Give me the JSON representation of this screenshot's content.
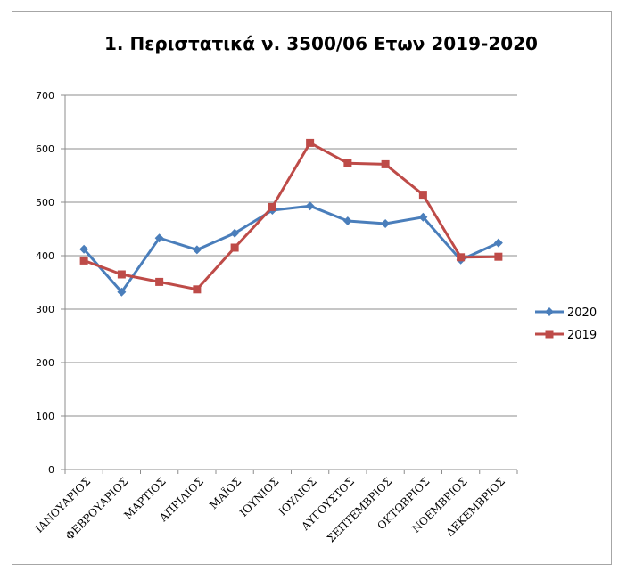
{
  "chart_data": {
    "type": "line",
    "title": "1. Περιστατικά ν. 3500/06 Ετων 2019-2020",
    "xlabel": "",
    "ylabel": "",
    "ylim": [
      0,
      700
    ],
    "yticks": [
      0,
      100,
      200,
      300,
      400,
      500,
      600,
      700
    ],
    "grid": true,
    "legend_position": "right",
    "categories": [
      "ΙΑΝΟΥΑΡΙΟΣ",
      "ΦΕΒΡΟΥΑΡΙΟΣ",
      "ΜΑΡΤΙΟΣ",
      "ΑΠΡΙΛΙΟΣ",
      "ΜΑΪΟΣ",
      "ΙΟΥΝΙΟΣ",
      "ΙΟΥΛΙΟΣ",
      "ΑΥΓΟΥΣΤΟΣ",
      "ΣΕΠΤΕΜΒΡΙΟΣ",
      "ΟΚΤΩΒΡΙΟΣ",
      "ΝΟΕΜΒΡΙΟΣ",
      "ΔΕΚΕΜΒΡΙΟΣ"
    ],
    "series": [
      {
        "name": "2020",
        "color": "#4a7ebb",
        "marker": "diamond",
        "values": [
          412,
          332,
          433,
          411,
          442,
          485,
          493,
          465,
          460,
          472,
          392,
          424
        ]
      },
      {
        "name": "2019",
        "color": "#be4b48",
        "marker": "square",
        "values": [
          391,
          365,
          351,
          337,
          415,
          491,
          611,
          573,
          571,
          514,
          397,
          398
        ]
      }
    ]
  }
}
